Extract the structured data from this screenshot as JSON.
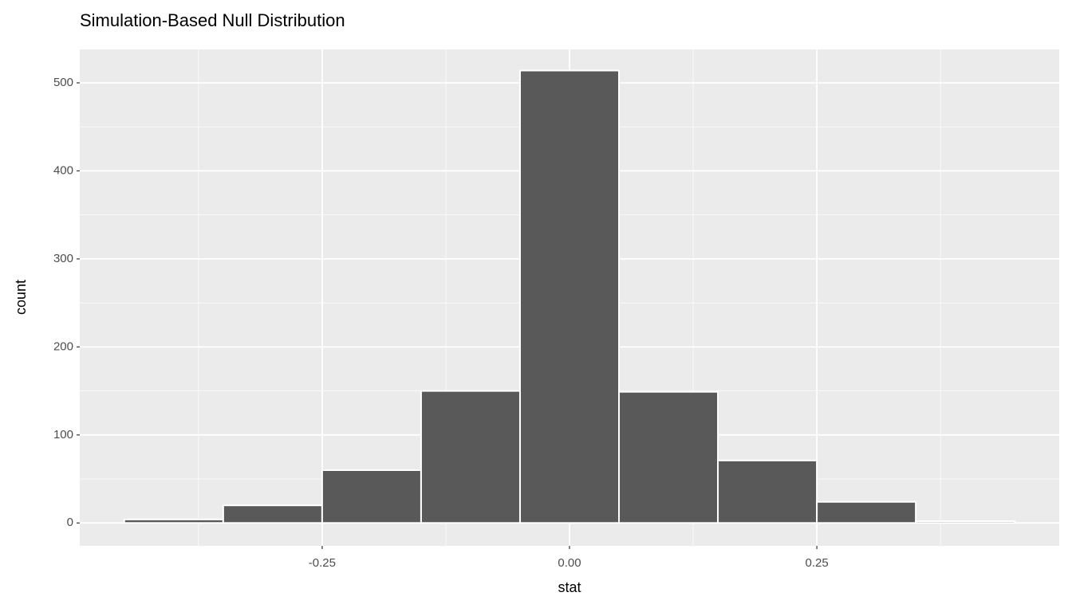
{
  "chart_data": {
    "type": "histogram",
    "title": "Simulation-Based Null Distribution",
    "x_label": "stat",
    "y_label": "count",
    "bins": [
      -0.45,
      -0.35,
      -0.25,
      -0.15,
      -0.05,
      0.05,
      0.15,
      0.25,
      0.35,
      0.45
    ],
    "values": [
      4,
      20,
      60,
      150,
      514,
      149,
      71,
      24,
      2
    ],
    "color": "#595959",
    "xlim": [
      -0.495,
      0.495
    ],
    "ylim": [
      -26,
      538
    ],
    "xticks": [
      -0.25,
      {
        "value": 0,
        "label": "0.00"
      },
      0.25
    ],
    "yticks": [
      0,
      100,
      200,
      300,
      400,
      500
    ],
    "grid": true
  }
}
